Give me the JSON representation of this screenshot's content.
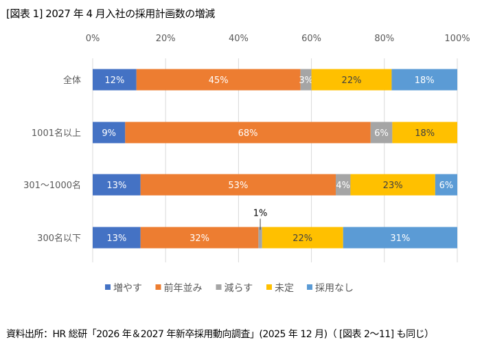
{
  "chart_data": {
    "type": "bar",
    "orientation": "horizontal",
    "stacked": "100%",
    "title": "[図表 1] 2027 年 4 月入社の採用計画数の増減",
    "categories": [
      "全体",
      "1001名以上",
      "301～1000名",
      "300名以下"
    ],
    "series": [
      {
        "name": "増やす",
        "color": "#4472C4",
        "values": [
          12,
          9,
          13,
          13
        ]
      },
      {
        "name": "前年並み",
        "color": "#ED7D31",
        "values": [
          45,
          68,
          53,
          32
        ]
      },
      {
        "name": "減らす",
        "color": "#A5A5A5",
        "values": [
          3,
          6,
          4,
          1
        ]
      },
      {
        "name": "未定",
        "color": "#FFC000",
        "values": [
          22,
          18,
          23,
          22
        ]
      },
      {
        "name": "採用なし",
        "color": "#5B9BD5",
        "values": [
          18,
          0,
          6,
          31
        ]
      }
    ],
    "xlim": [
      0,
      100
    ],
    "xticks": [
      "0%",
      "20%",
      "40%",
      "60%",
      "80%",
      "100%"
    ],
    "xaxis_position": "top",
    "grid": true,
    "legend": "bottom"
  },
  "source": "資料出所：HR 総研「2026 年＆2027 年新卒採用動向調査」(2025 年 12 月)（ [図表 2～11] も同じ）"
}
